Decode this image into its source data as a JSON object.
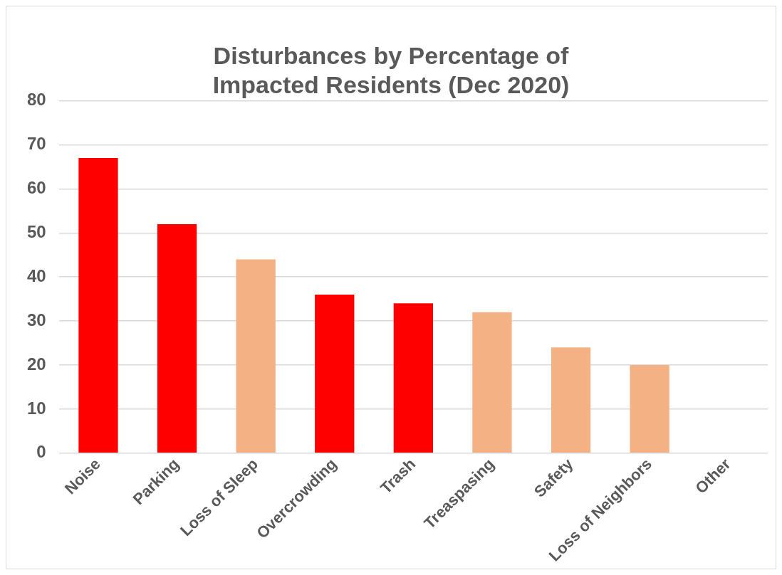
{
  "chart_data": {
    "type": "bar",
    "title": "Disturbances by Percentage of Impacted Residents (Dec 2020)",
    "categories": [
      "Noise",
      "Parking",
      "Loss of Sleep",
      "Overcrowding",
      "Trash",
      "Treaspasing",
      "Safety",
      "Loss of Neighbors",
      "Other"
    ],
    "values": [
      67,
      52,
      44,
      36,
      34,
      32,
      24,
      20,
      0
    ],
    "colors": [
      "#ff0000",
      "#ff0000",
      "#f4b183",
      "#ff0000",
      "#ff0000",
      "#f4b183",
      "#f4b183",
      "#f4b183",
      "#f4b183"
    ],
    "ylim": [
      0,
      80
    ],
    "yticks": [
      0,
      10,
      20,
      30,
      40,
      50,
      60,
      70,
      80
    ],
    "grid": "y",
    "legend": false
  }
}
